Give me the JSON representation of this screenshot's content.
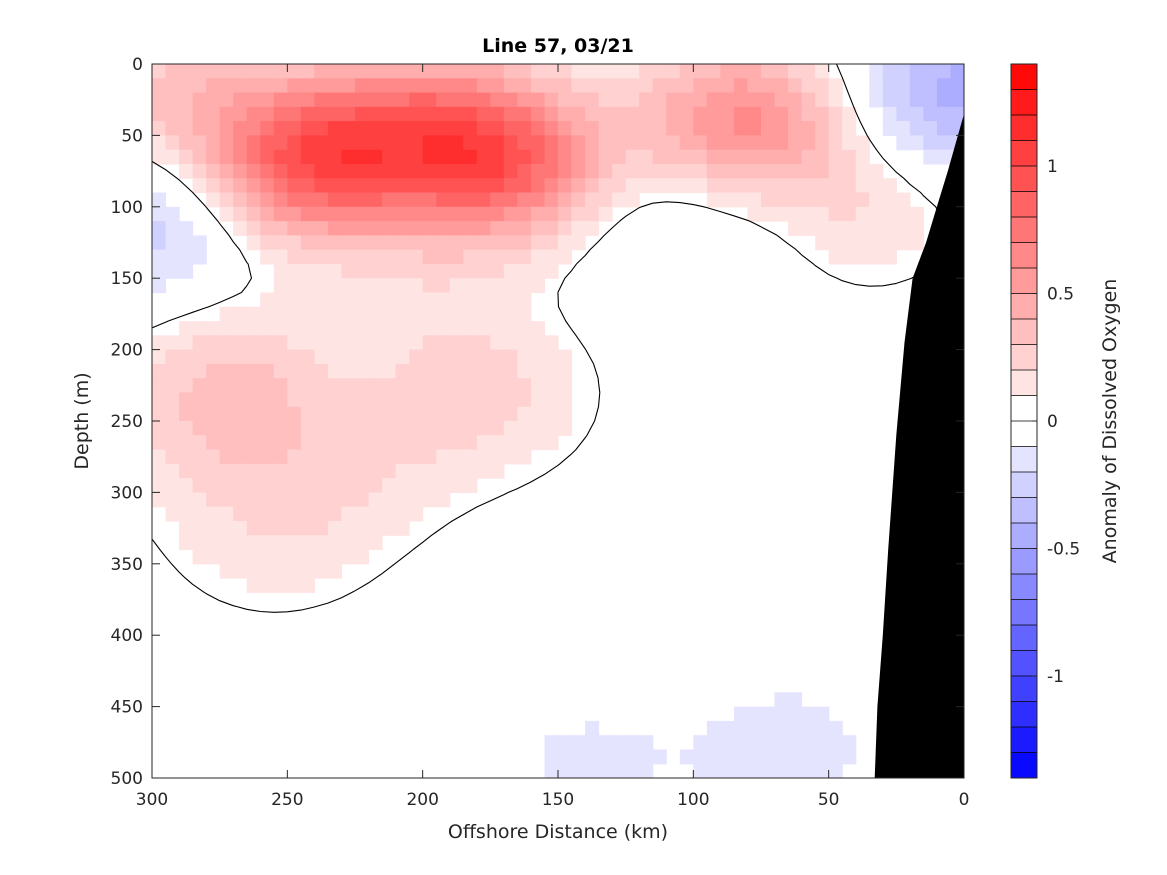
{
  "chart_data": {
    "type": "heatmap",
    "title": "Line 57, 03/21",
    "xlabel": "Offshore Distance (km)",
    "ylabel": "Depth (m)",
    "xlim": [
      300,
      0
    ],
    "ylim": [
      0,
      500
    ],
    "x_reversed": true,
    "y_reversed": true,
    "x_ticks": [
      "300",
      "250",
      "200",
      "150",
      "100",
      "50",
      "0"
    ],
    "x_tick_values": [
      300,
      250,
      200,
      150,
      100,
      50,
      0
    ],
    "y_ticks": [
      "0",
      "50",
      "100",
      "150",
      "200",
      "250",
      "300",
      "350",
      "400",
      "450",
      "500"
    ],
    "y_tick_values": [
      0,
      50,
      100,
      150,
      200,
      250,
      300,
      350,
      400,
      450,
      500
    ],
    "colorbar": {
      "label": "Anomaly of Dissolved Oxygen",
      "range": [
        -1.4,
        1.4
      ],
      "ticks": [
        "1",
        "0.5",
        "0",
        "-0.5",
        "-1"
      ],
      "tick_values": [
        1,
        0.5,
        0,
        -0.5,
        -1
      ],
      "levels": 28,
      "colormap": "blue-white-red"
    },
    "colors": {
      "negative_max": "#0000ff",
      "zero": "#ffffff",
      "positive_max": "#ff0000",
      "bathymetry": "#000000"
    },
    "bathymetry": [
      [
        33,
        500
      ],
      [
        32,
        450
      ],
      [
        30,
        400
      ],
      [
        28,
        340
      ],
      [
        25,
        260
      ],
      [
        22,
        195
      ],
      [
        19,
        150
      ],
      [
        14,
        125
      ],
      [
        10,
        100
      ],
      [
        6,
        75
      ],
      [
        3,
        55
      ],
      [
        0,
        35
      ]
    ],
    "zero_contour": true,
    "blobs": [
      {
        "x": 230,
        "y": 65,
        "value": 0.55
      },
      {
        "x": 250,
        "y": 70,
        "value": 0.45
      },
      {
        "x": 165,
        "y": 70,
        "value": 0.5
      },
      {
        "x": 180,
        "y": 65,
        "value": 0.4
      },
      {
        "x": 290,
        "y": 20,
        "value": 0.3
      },
      {
        "x": 200,
        "y": 30,
        "value": 0.3
      },
      {
        "x": 90,
        "y": 40,
        "value": 0.3
      },
      {
        "x": 75,
        "y": 40,
        "value": 0.35
      },
      {
        "x": 40,
        "y": 100,
        "value": 0.2
      },
      {
        "x": 270,
        "y": 220,
        "value": 0.25
      },
      {
        "x": 180,
        "y": 230,
        "value": 0.25
      },
      {
        "x": 255,
        "y": 330,
        "value": 0.15
      },
      {
        "x": 225,
        "y": 280,
        "value": 0.15
      },
      {
        "x": 280,
        "y": 260,
        "value": 0.15
      },
      {
        "x": 200,
        "y": 150,
        "value": 0.1
      },
      {
        "x": 5,
        "y": 20,
        "value": -0.45
      },
      {
        "x": 300,
        "y": 110,
        "value": -0.3
      },
      {
        "x": 65,
        "y": 480,
        "value": -0.15
      },
      {
        "x": 140,
        "y": 490,
        "value": -0.12
      },
      {
        "x": 230,
        "y": 500,
        "value": -0.1
      },
      {
        "x": 120,
        "y": 110,
        "value": -0.1
      },
      {
        "x": 80,
        "y": 110,
        "value": -0.1
      }
    ]
  }
}
